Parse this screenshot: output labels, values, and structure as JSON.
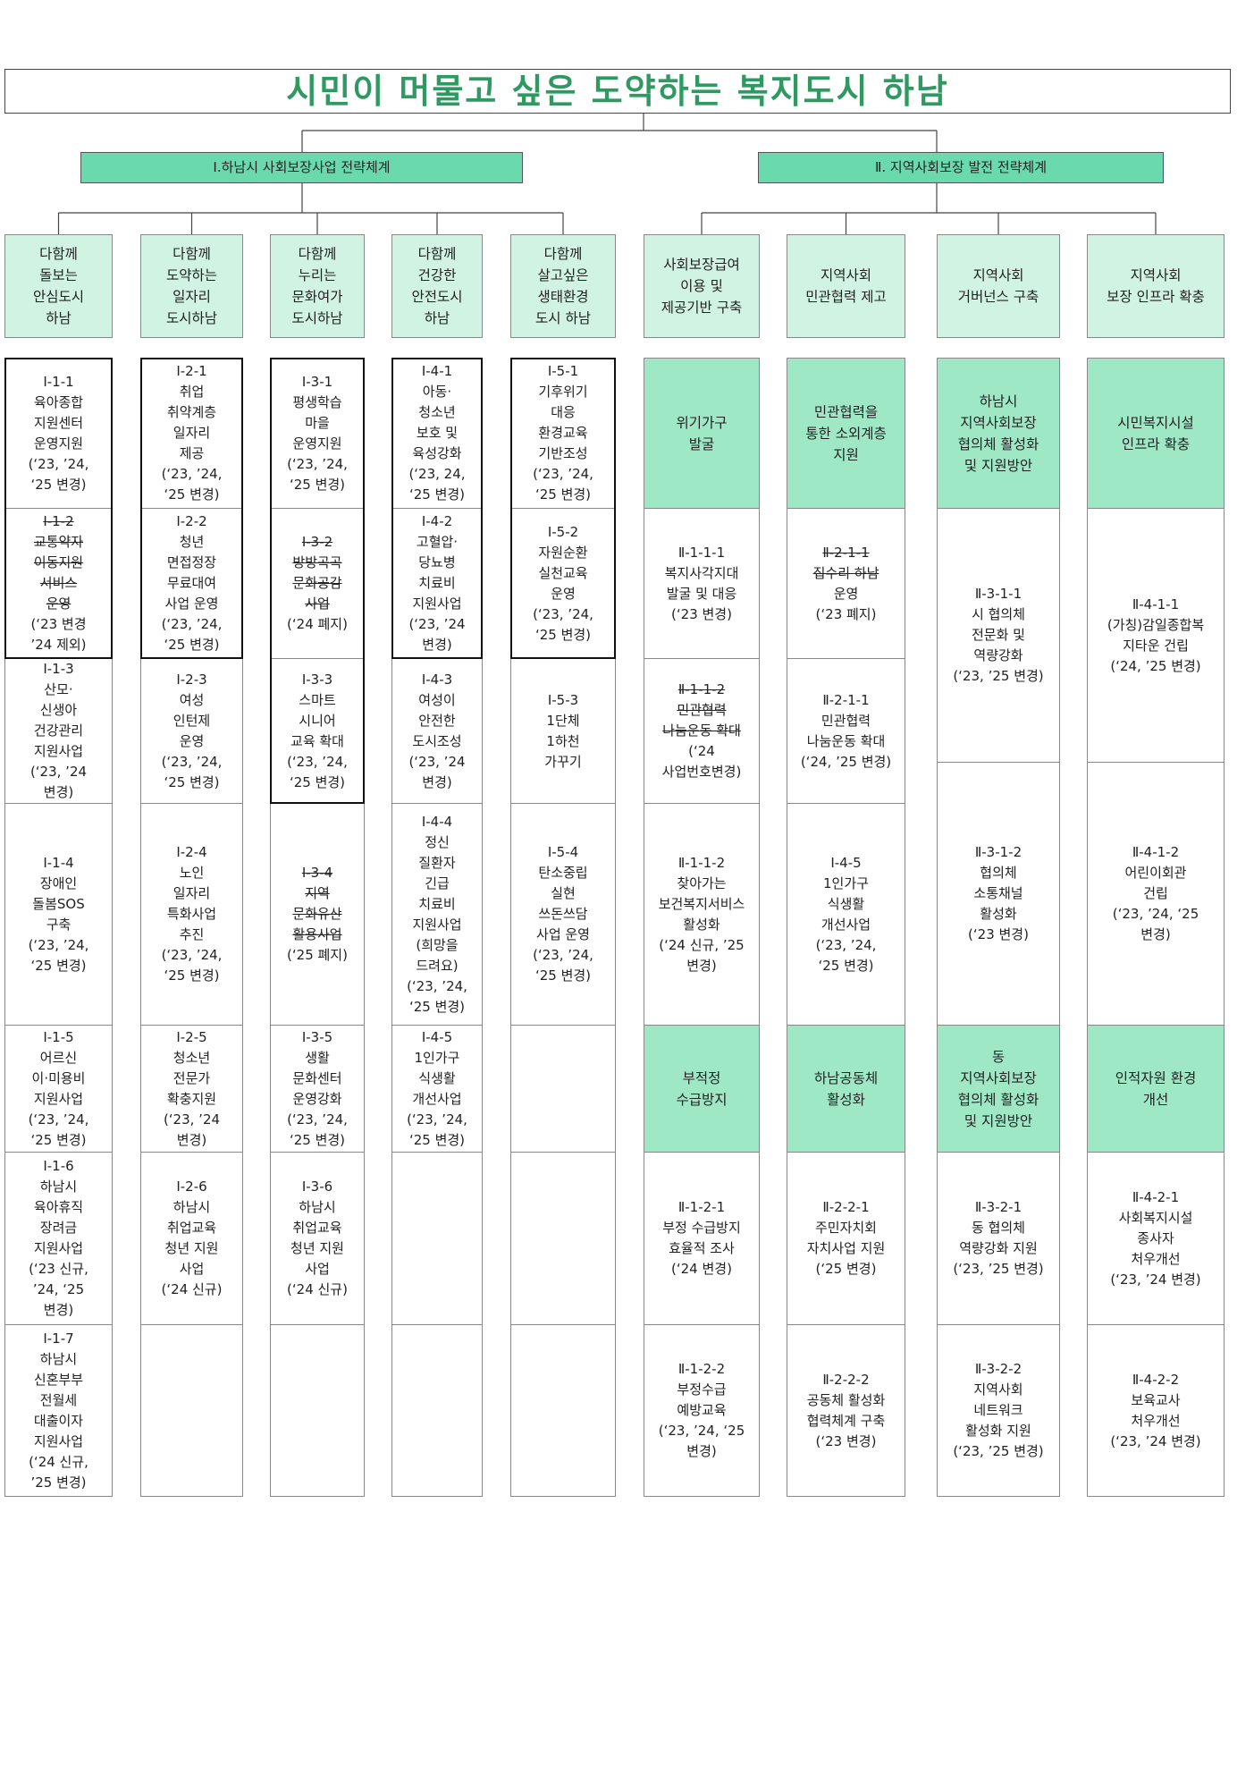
{
  "title": "시민이 머물고 싶은 도약하는 복지도시 하남",
  "branches": [
    {
      "label": "Ⅰ.하남시 사회보장사업 전략체계"
    },
    {
      "label": "Ⅱ. 지역사회보장 발전 전략체계"
    }
  ],
  "colors": {
    "title_text": "#2e9a62",
    "branch_fill": "#6ad9ad",
    "header_fill": "#d0f3e4",
    "sub_fill": "#9ee8c6"
  },
  "part1": {
    "columns": [
      {
        "header": "다함께\n돌보는\n안심도시\n하남",
        "cells": [
          {
            "text": "Ⅰ-1-1\n육아종합\n지원센터\n운영지원\n(‘23, ’24,\n‘25 변경)"
          },
          {
            "del": "Ⅰ-1-2\n교통약자\n이동지원\n서비스\n운영",
            "text": "(‘23 변경\n’24 제외)"
          },
          {
            "text": "Ⅰ-1-3\n산모·\n신생아\n건강관리\n지원사업\n(‘23, ’24\n변경)"
          },
          {
            "text": "Ⅰ-1-4\n장애인\n돌봄SOS\n구축\n(‘23, ’24,\n‘25 변경)"
          },
          {
            "text": "Ⅰ-1-5\n어르신\n이·미용비\n지원사업\n(‘23, ’24,\n‘25 변경)"
          },
          {
            "text": "Ⅰ-1-6\n하남시\n육아휴직\n장려금\n지원사업\n(‘23 신규,\n’24, ‘25\n변경)"
          },
          {
            "text": "Ⅰ-1-7\n하남시\n신혼부부\n전월세\n대출이자\n지원사업\n(‘24 신규,\n’25 변경)"
          }
        ]
      },
      {
        "header": "다함께\n도약하는\n일자리\n도시하남",
        "cells": [
          {
            "text": "Ⅰ-2-1\n취업\n취약계층\n일자리\n제공\n(‘23, ’24,\n‘25 변경)"
          },
          {
            "text": "Ⅰ-2-2\n청년\n면접정장\n무료대여\n사업 운영\n(‘23, ’24,\n‘25 변경)"
          },
          {
            "text": "Ⅰ-2-3\n여성\n인턴제\n운영\n(‘23, ’24,\n‘25 변경)"
          },
          {
            "text": "Ⅰ-2-4\n노인\n일자리\n특화사업\n추진\n(‘23, ’24,\n‘25 변경)"
          },
          {
            "text": "Ⅰ-2-5\n청소년\n전문가\n확충지원\n(‘23, ’24\n변경)"
          },
          {
            "text": "Ⅰ-2-6\n하남시\n취업교육\n청년 지원\n사업\n(‘24 신규)"
          },
          {
            "text": ""
          }
        ]
      },
      {
        "header": "다함께\n누리는\n문화여가\n도시하남",
        "cells": [
          {
            "text": "Ⅰ-3-1\n평생학습\n마을\n운영지원\n(‘23, ’24,\n‘25 변경)"
          },
          {
            "del": "Ⅰ-3-2\n방방곡곡\n문화공감\n사업",
            "text": "(‘24 폐지)"
          },
          {
            "text": "Ⅰ-3-3\n스마트\n시니어\n교육 확대\n(‘23, ’24,\n‘25 변경)"
          },
          {
            "del": "Ⅰ-3-4\n지역\n문화유산\n활용사업",
            "text": "(‘25 폐지)"
          },
          {
            "text": "Ⅰ-3-5\n생활\n문화센터\n운영강화\n(‘23, ’24,\n‘25 변경)"
          },
          {
            "text": "Ⅰ-3-6\n하남시\n취업교육\n청년 지원\n사업\n(‘24 신규)"
          },
          {
            "text": ""
          }
        ]
      },
      {
        "header": "다함께\n건강한\n안전도시\n하남",
        "cells": [
          {
            "text": "Ⅰ-4-1\n아동·\n청소년\n보호 및\n육성강화\n(‘23, 24,\n‘25 변경)"
          },
          {
            "text": "Ⅰ-4-2\n고혈압·\n당뇨병\n치료비\n지원사업\n(‘23, ’24\n변경)"
          },
          {
            "text": "Ⅰ-4-3\n여성이\n안전한\n도시조성\n(‘23, ’24\n변경)"
          },
          {
            "text": "Ⅰ-4-4\n정신\n질환자\n긴급\n치료비\n지원사업\n(희망을\n드려요)\n(‘23, ’24,\n‘25 변경)"
          },
          {
            "text": "Ⅰ-4-5\n1인가구\n식생활\n개선사업\n(‘23, ’24,\n‘25 변경)"
          },
          {
            "text": ""
          },
          {
            "text": ""
          }
        ]
      },
      {
        "header": "다함께\n살고싶은\n생태환경\n도시 하남",
        "cells": [
          {
            "text": "Ⅰ-5-1\n기후위기\n대응\n환경교육\n기반조성\n(‘23, ’24,\n‘25 변경)"
          },
          {
            "text": "Ⅰ-5-2\n자원순환\n실천교육\n운영\n(‘23, ’24,\n‘25 변경)"
          },
          {
            "text": "Ⅰ-5-3\n1단체\n1하천\n가꾸기"
          },
          {
            "text": "Ⅰ-5-4\n탄소중립\n실현\n쓰돈쓰담\n사업 운영\n(‘23, ’24,\n‘25 변경)"
          },
          {
            "text": ""
          },
          {
            "text": ""
          },
          {
            "text": ""
          }
        ]
      }
    ]
  },
  "part2": {
    "columns": [
      {
        "header": "사회보장급여\n이용 및\n제공기반 구축",
        "sub1": "위기가구\n발굴",
        "group1": [
          {
            "text": "Ⅱ-1-1-1\n복지사각지대\n발굴 및 대응\n(‘23 변경)"
          },
          {
            "del": "Ⅱ-1-1-2\n민관협력\n나눔운동 확대",
            "text": "(‘24\n사업번호변경)"
          },
          {
            "text": "Ⅱ-1-1-2\n찾아가는\n보건복지서비스\n활성화\n(‘24 신규, ’25\n변경)"
          }
        ],
        "sub2": "부적정\n수급방지",
        "group2": [
          {
            "text": "Ⅱ-1-2-1\n부정 수급방지\n효율적 조사\n(‘24 변경)"
          },
          {
            "text": "Ⅱ-1-2-2\n부정수급\n예방교육\n(‘23, ’24, ‘25\n변경)"
          }
        ]
      },
      {
        "header": "지역사회\n민관협력 제고",
        "sub1": "민관협력을\n통한 소외계층\n지원",
        "group1": [
          {
            "del": "Ⅱ-2-1-1\n집수리 하남",
            "text": "운영\n(‘23 폐지)"
          },
          {
            "text": "Ⅱ-2-1-1\n민관협력\n나눔운동 확대\n(‘24, ’25 변경)"
          },
          {
            "text": "Ⅰ-4-5\n1인가구\n식생활\n개선사업\n(‘23, ’24,\n‘25 변경)"
          }
        ],
        "sub2": "하남공동체\n활성화",
        "group2": [
          {
            "text": "Ⅱ-2-2-1\n주민자치회\n자치사업 지원\n(‘25 변경)"
          },
          {
            "text": "Ⅱ-2-2-2\n공동체 활성화\n협력체계 구축\n(‘23 변경)"
          }
        ]
      },
      {
        "header": "지역사회\n거버넌스 구축",
        "sub1": "하남시\n지역사회보장\n협의체 활성화\n및 지원방안",
        "group1": [
          {
            "text": "Ⅱ-3-1-1\n시 협의체\n전문화 및\n역량강화\n(‘23, ’25 변경)"
          },
          {
            "text": "Ⅱ-3-1-2\n협의체\n소통채널\n활성화\n(‘23 변경)"
          }
        ],
        "sub2": "동\n지역사회보장\n협의체 활성화\n및 지원방안",
        "group2": [
          {
            "text": "Ⅱ-3-2-1\n동 협의체\n역량강화 지원\n(‘23, ’25 변경)"
          },
          {
            "text": "Ⅱ-3-2-2\n지역사회\n네트워크\n활성화 지원\n(‘23, ’25 변경)"
          }
        ]
      },
      {
        "header": "지역사회\n보장 인프라 확충",
        "sub1": "시민복지시설\n인프라 확충",
        "group1": [
          {
            "text": "Ⅱ-4-1-1\n(가칭)감일종합복\n지타운 건립\n(‘24, ’25 변경)"
          },
          {
            "text": "Ⅱ-4-1-2\n어린이회관\n건립\n(‘23, ’24, ‘25\n변경)"
          }
        ],
        "sub2": "인적자원 환경\n개선",
        "group2": [
          {
            "text": "Ⅱ-4-2-1\n사회복지시설\n종사자\n처우개선\n(‘23, ’24 변경)"
          },
          {
            "text": "Ⅱ-4-2-2\n보육교사\n처우개선\n(‘23, ’24 변경)"
          }
        ]
      }
    ]
  }
}
